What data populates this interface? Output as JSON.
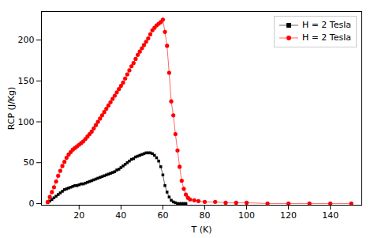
{
  "chart_data": {
    "type": "line",
    "xlabel": "T (K)",
    "ylabel": "RCP (J/Kg)",
    "xlim": [
      2,
      155
    ],
    "ylim": [
      -2,
      235
    ],
    "xticks": [
      20,
      40,
      60,
      80,
      100,
      120,
      140
    ],
    "yticks": [
      0,
      50,
      100,
      150,
      200
    ],
    "grid": false,
    "legend": "upper right",
    "series": [
      {
        "name": "H = 2 Tesla",
        "color": "black",
        "marker": "square",
        "x": [
          5,
          6,
          7,
          8,
          9,
          10,
          11,
          12,
          13,
          14,
          15,
          16,
          17,
          18,
          19,
          20,
          21,
          22,
          23,
          24,
          25,
          26,
          27,
          28,
          29,
          30,
          31,
          32,
          33,
          34,
          35,
          36,
          37,
          38,
          39,
          40,
          41,
          42,
          43,
          44,
          45,
          46,
          47,
          48,
          49,
          50,
          51,
          52,
          53,
          54,
          55,
          56,
          57,
          58,
          59,
          60,
          61,
          62,
          63,
          64,
          65,
          66,
          67,
          68,
          69,
          70,
          71
        ],
        "values": [
          1,
          3,
          5,
          7,
          9,
          11,
          13,
          15,
          17,
          18,
          19,
          20,
          21,
          22,
          22,
          23,
          24,
          24,
          25,
          26,
          27,
          28,
          29,
          30,
          31,
          32,
          33,
          34,
          35,
          36,
          37,
          38,
          39,
          41,
          42,
          44,
          46,
          48,
          50,
          52,
          54,
          55,
          57,
          58,
          59,
          60,
          61,
          62,
          62,
          62,
          61,
          59,
          56,
          52,
          45,
          35,
          22,
          14,
          8,
          4,
          2,
          1,
          0,
          0,
          0,
          0,
          0
        ]
      },
      {
        "name": "H = 2 Tesla",
        "color": "red",
        "marker": "circle",
        "x": [
          5,
          6,
          7,
          8,
          9,
          10,
          11,
          12,
          13,
          14,
          15,
          16,
          17,
          18,
          19,
          20,
          21,
          22,
          23,
          24,
          25,
          26,
          27,
          28,
          29,
          30,
          31,
          32,
          33,
          34,
          35,
          36,
          37,
          38,
          39,
          40,
          41,
          42,
          43,
          44,
          45,
          46,
          47,
          48,
          49,
          50,
          51,
          52,
          53,
          54,
          55,
          56,
          57,
          58,
          59,
          60,
          61,
          62,
          63,
          64,
          65,
          66,
          67,
          68,
          69,
          70,
          71,
          72,
          73,
          75,
          77,
          80,
          85,
          90,
          95,
          100,
          110,
          120,
          130,
          140,
          150
        ],
        "values": [
          2,
          8,
          14,
          20,
          27,
          34,
          40,
          46,
          51,
          56,
          60,
          63,
          66,
          68,
          70,
          72,
          74,
          76,
          79,
          82,
          85,
          88,
          92,
          96,
          100,
          104,
          108,
          112,
          116,
          120,
          124,
          128,
          132,
          136,
          140,
          144,
          148,
          153,
          158,
          163,
          168,
          172,
          177,
          182,
          186,
          190,
          194,
          198,
          202,
          207,
          212,
          215,
          218,
          220,
          222,
          225,
          210,
          193,
          160,
          125,
          108,
          85,
          65,
          45,
          28,
          18,
          11,
          7,
          5,
          4,
          3,
          2,
          2,
          1,
          1,
          1,
          0,
          0,
          0,
          0,
          0
        ]
      }
    ]
  }
}
